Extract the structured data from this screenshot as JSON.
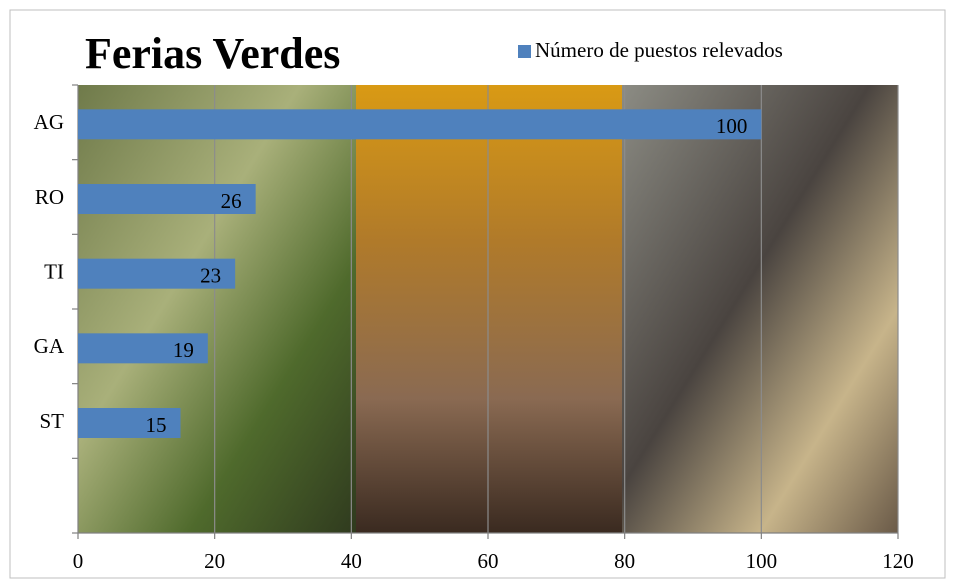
{
  "chart_data": {
    "type": "bar",
    "orientation": "horizontal",
    "title": "Ferias Verdes",
    "categories": [
      "AG",
      "RO",
      "TI",
      "GA",
      "ST",
      null
    ],
    "series": [
      {
        "name": "Número de puestos relevados",
        "color": "#4f81bd",
        "values": [
          100,
          26,
          23,
          19,
          15,
          null
        ]
      }
    ],
    "xlim": [
      0,
      120
    ],
    "xticks": [
      0,
      20,
      40,
      60,
      80,
      100,
      120
    ],
    "grid": true,
    "legend": "top-right"
  }
}
